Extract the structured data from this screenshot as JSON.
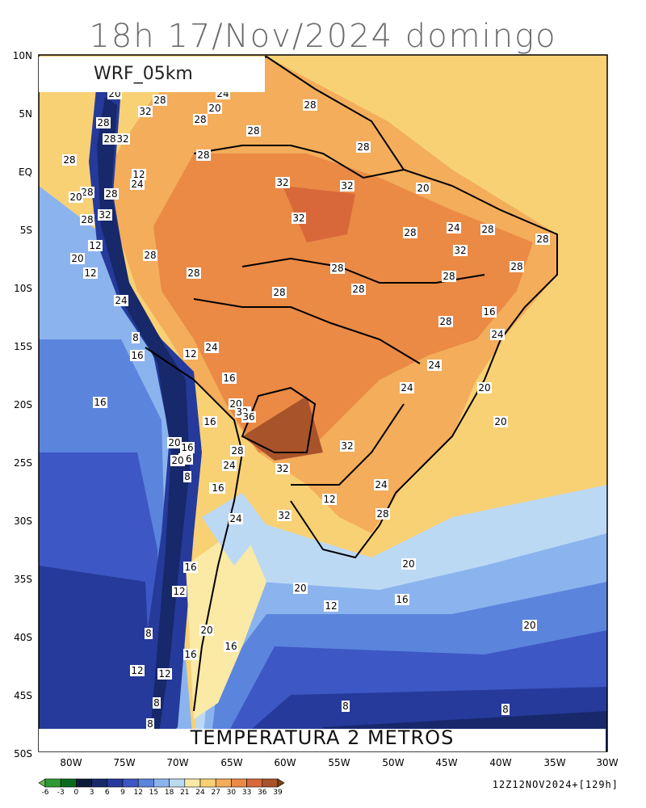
{
  "title": "18h 17/Nov/2024 domingo",
  "model_label": "WRF_05km",
  "bottom_title": "TEMPERATURA 2 METROS",
  "run_info": "12Z12NOV2024+[129h]",
  "lat_labels": [
    "10N",
    "5N",
    "EQ",
    "5S",
    "10S",
    "15S",
    "20S",
    "25S",
    "30S",
    "35S",
    "40S",
    "45S",
    "50S"
  ],
  "lon_labels": [
    "80W",
    "75W",
    "70W",
    "65W",
    "60W",
    "55W",
    "50W",
    "45W",
    "40W",
    "35W",
    "30W"
  ],
  "colorbar": {
    "ticks": [
      "-6",
      "-3",
      "0",
      "3",
      "6",
      "9",
      "12",
      "15",
      "18",
      "21",
      "24",
      "27",
      "30",
      "33",
      "36",
      "39"
    ],
    "colors": [
      "#67b857",
      "#2f9a35",
      "#0b6a1e",
      "#0c1b3a",
      "#17286b",
      "#253a9a",
      "#3d57c4",
      "#5b84dd",
      "#8bb4ee",
      "#bcd9f4",
      "#fbe9a6",
      "#f8d175",
      "#f3ad5b",
      "#ea8a45",
      "#d8683a",
      "#a9532a",
      "#7a4115"
    ]
  },
  "contour_labels": [
    "20",
    "28",
    "20",
    "28",
    "24",
    "28",
    "28",
    "28",
    "32",
    "32",
    "28",
    "28",
    "28",
    "12",
    "28",
    "28",
    "24",
    "20",
    "28",
    "32",
    "32",
    "32",
    "32",
    "28",
    "20",
    "28",
    "12",
    "28",
    "28",
    "24",
    "12",
    "28",
    "20",
    "28",
    "28",
    "24",
    "8",
    "28",
    "32",
    "28",
    "28",
    "16",
    "12",
    "24",
    "24",
    "16",
    "24",
    "20",
    "16",
    "20",
    "16",
    "20",
    "32",
    "36",
    "16",
    "16",
    "20",
    "32",
    "16",
    "28",
    "24",
    "32",
    "24",
    "12",
    "8",
    "28",
    "32",
    "20",
    "24",
    "16",
    "28",
    "24",
    "28",
    "20",
    "16",
    "12",
    "20",
    "16",
    "16",
    "20",
    "20",
    "16",
    "12",
    "16",
    "8",
    "20",
    "8",
    "8",
    "12",
    "12",
    "8",
    "8"
  ]
}
